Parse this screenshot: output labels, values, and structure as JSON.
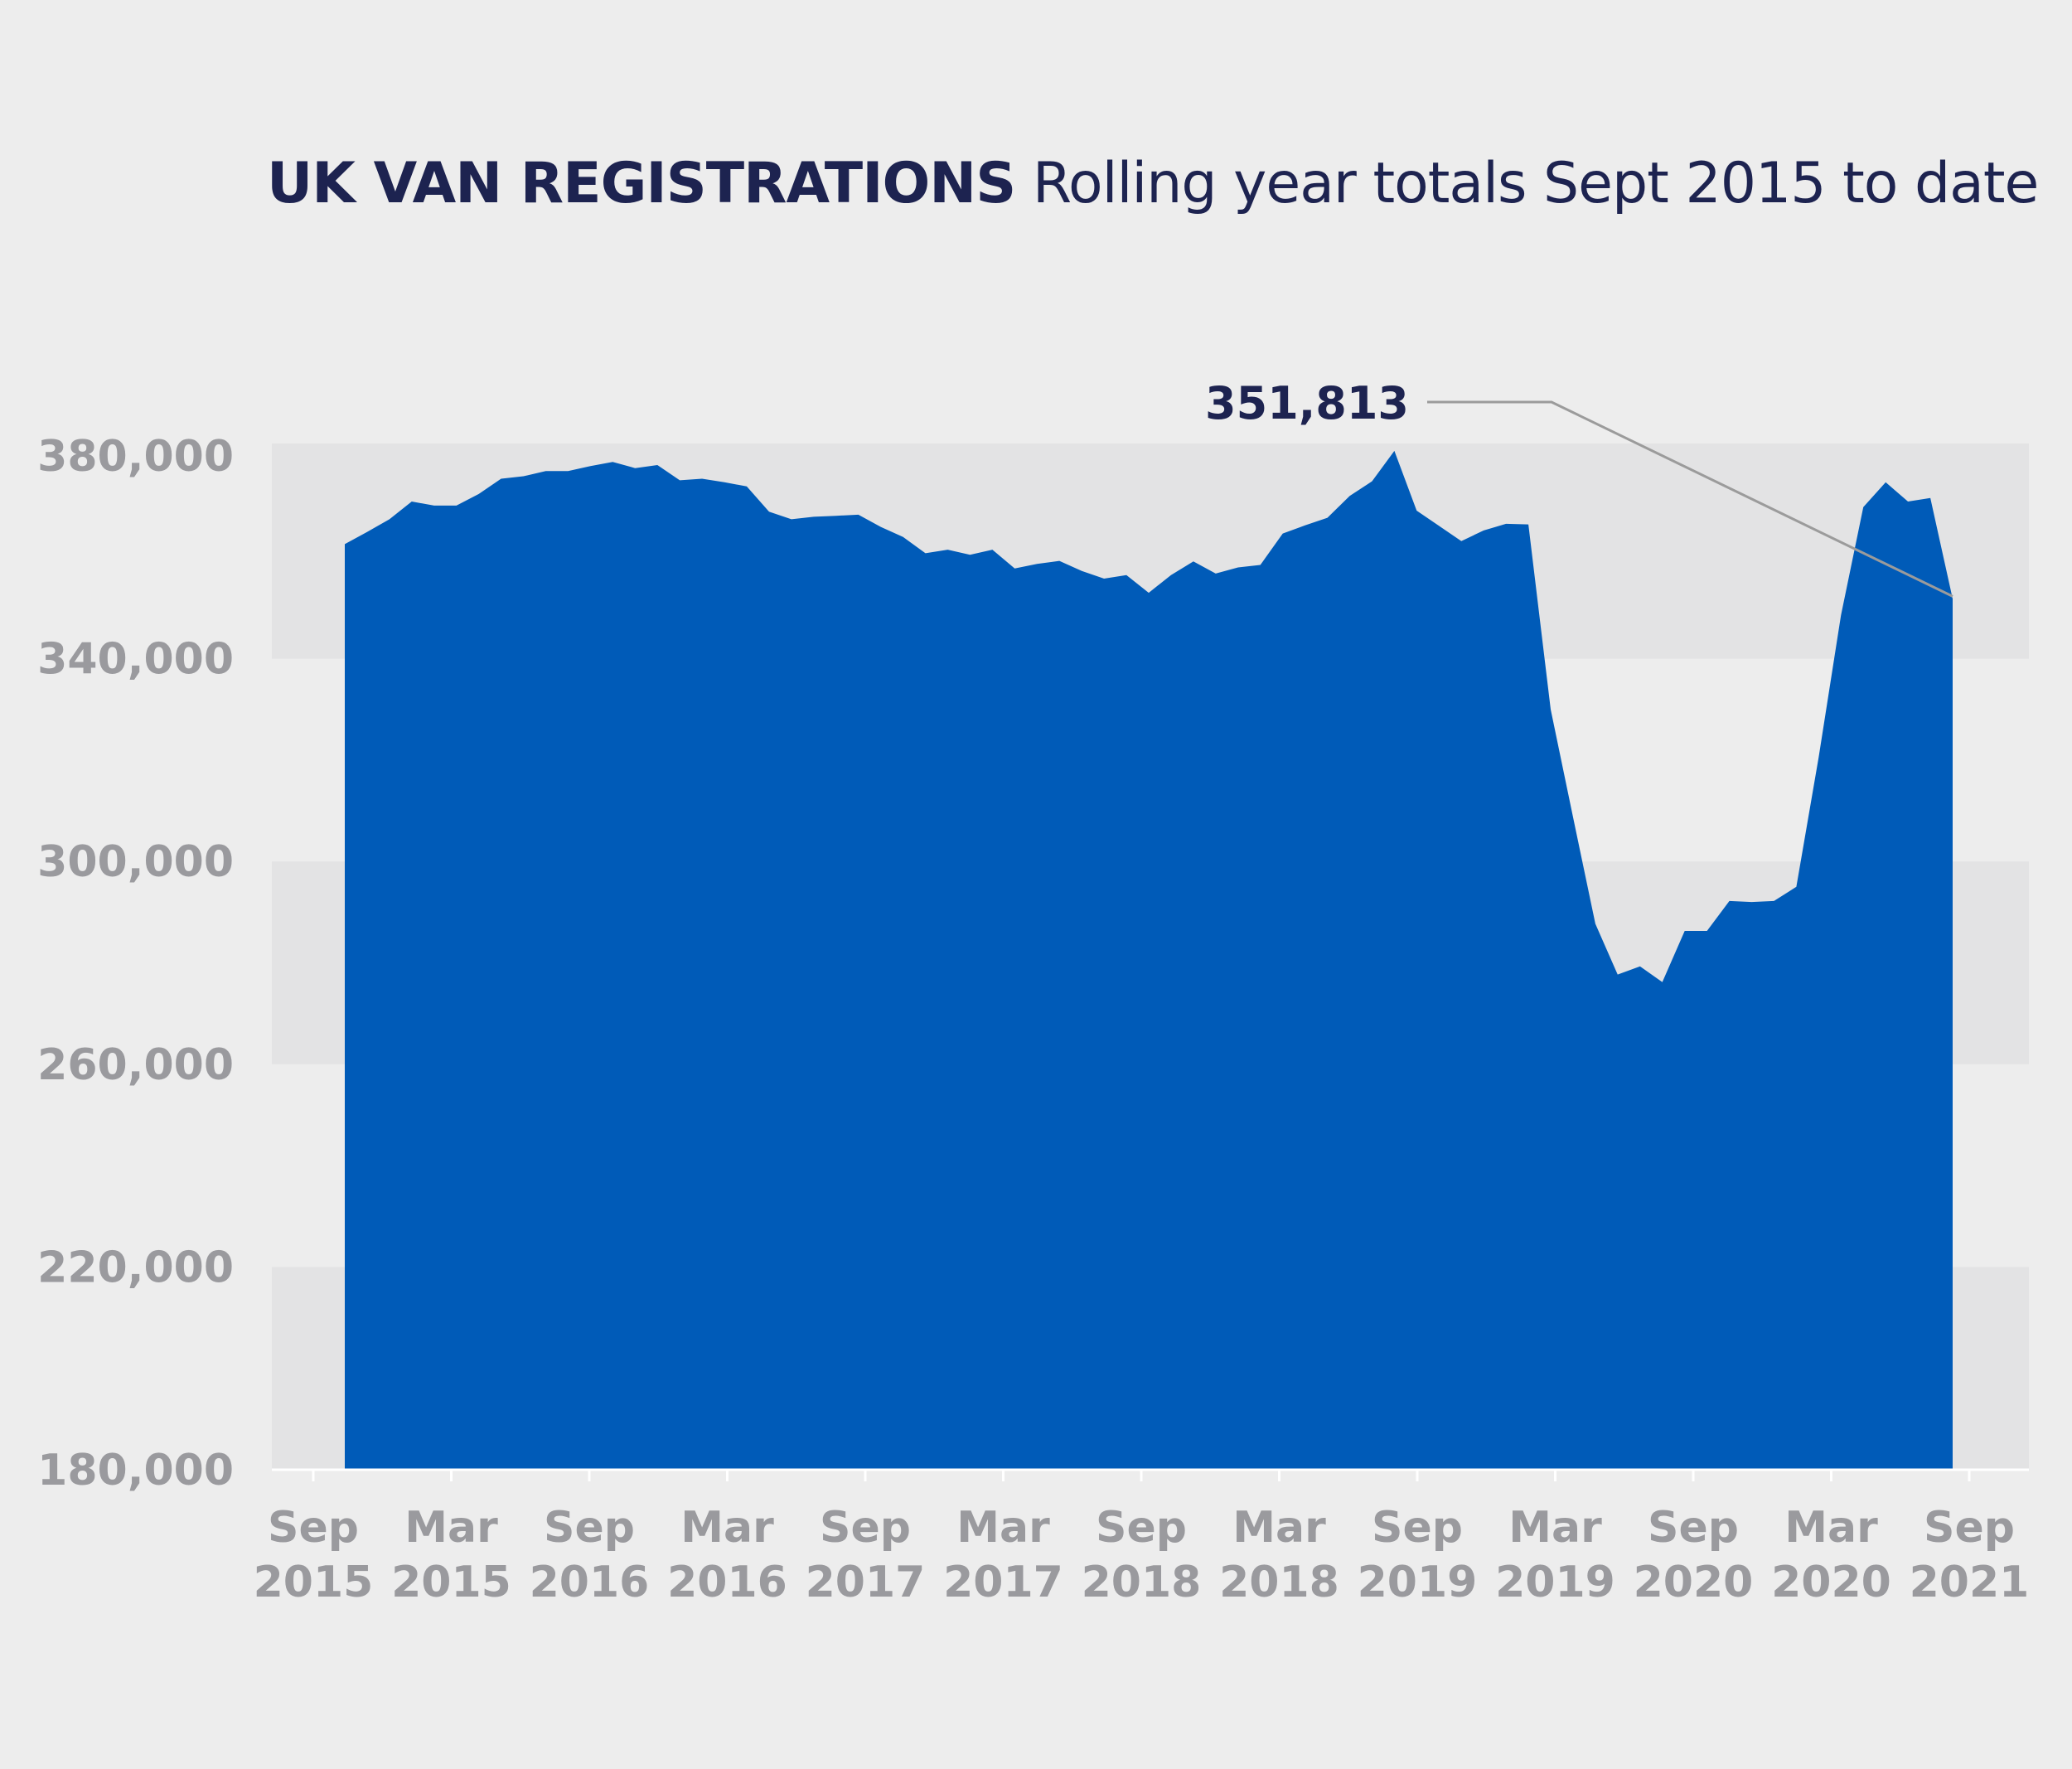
{
  "title": "UK VAN REGISTRATIONS",
  "subtitle": "Rolling year totals Sept 2015 to date",
  "colors": {
    "background": "#ededed",
    "band": "#e3e3e4",
    "area": "#005bb8",
    "title": "#1d2350",
    "tick_text": "#9a9a9e",
    "annotation_line": "#9b9b9b",
    "axis": "#ffffff"
  },
  "chart_data": {
    "type": "area",
    "title": "UK VAN REGISTRATIONS",
    "subtitle": "Rolling year totals Sept 2015 to date",
    "xlabel": "",
    "ylabel": "",
    "ylim": [
      180000,
      380000
    ],
    "y_ticks": [
      180000,
      220000,
      260000,
      300000,
      340000,
      380000
    ],
    "y_tick_labels": [
      "180,000",
      "220,000",
      "260,000",
      "300,000",
      "340,000",
      "380,000"
    ],
    "x_tick_labels": [
      [
        "Sep",
        "2015"
      ],
      [
        "Mar",
        "2015"
      ],
      [
        "Sep",
        "2016"
      ],
      [
        "Mar",
        "2016"
      ],
      [
        "Sep",
        "2017"
      ],
      [
        "Mar",
        "2017"
      ],
      [
        "Sep",
        "2018"
      ],
      [
        "Mar",
        "2018"
      ],
      [
        "Sep",
        "2019"
      ],
      [
        "Mar",
        "2019"
      ],
      [
        "Sep",
        "2020"
      ],
      [
        "Mar",
        "2020"
      ],
      [
        "Sep",
        "2021"
      ]
    ],
    "grid": false,
    "legend": "none",
    "series": [
      {
        "values": [
          362600,
          365000,
          367500,
          371000,
          370200,
          370200,
          372500,
          375500,
          376000,
          377000,
          377000,
          378000,
          378800,
          377600,
          378200,
          375200,
          375500,
          374800,
          374000,
          369000,
          367500,
          368000,
          368200,
          368400,
          366000,
          364000,
          360800,
          361500,
          360500,
          361500,
          357800,
          358700,
          359300,
          357300,
          355800,
          356500,
          353000,
          356500,
          359200,
          356800,
          358000,
          358500,
          364700,
          366300,
          367800,
          372100,
          375000,
          381000,
          369200,
          366200,
          363200,
          365300,
          366600,
          366500,
          330000,
          308800,
          287700,
          277700,
          279300,
          276200,
          286300,
          286300,
          292200,
          292000,
          292200,
          295000,
          320500,
          348600,
          369900,
          374800,
          371000,
          371700,
          351813
        ]
      }
    ],
    "annotations": [
      {
        "text": "351,813",
        "point_index": 72
      }
    ]
  }
}
